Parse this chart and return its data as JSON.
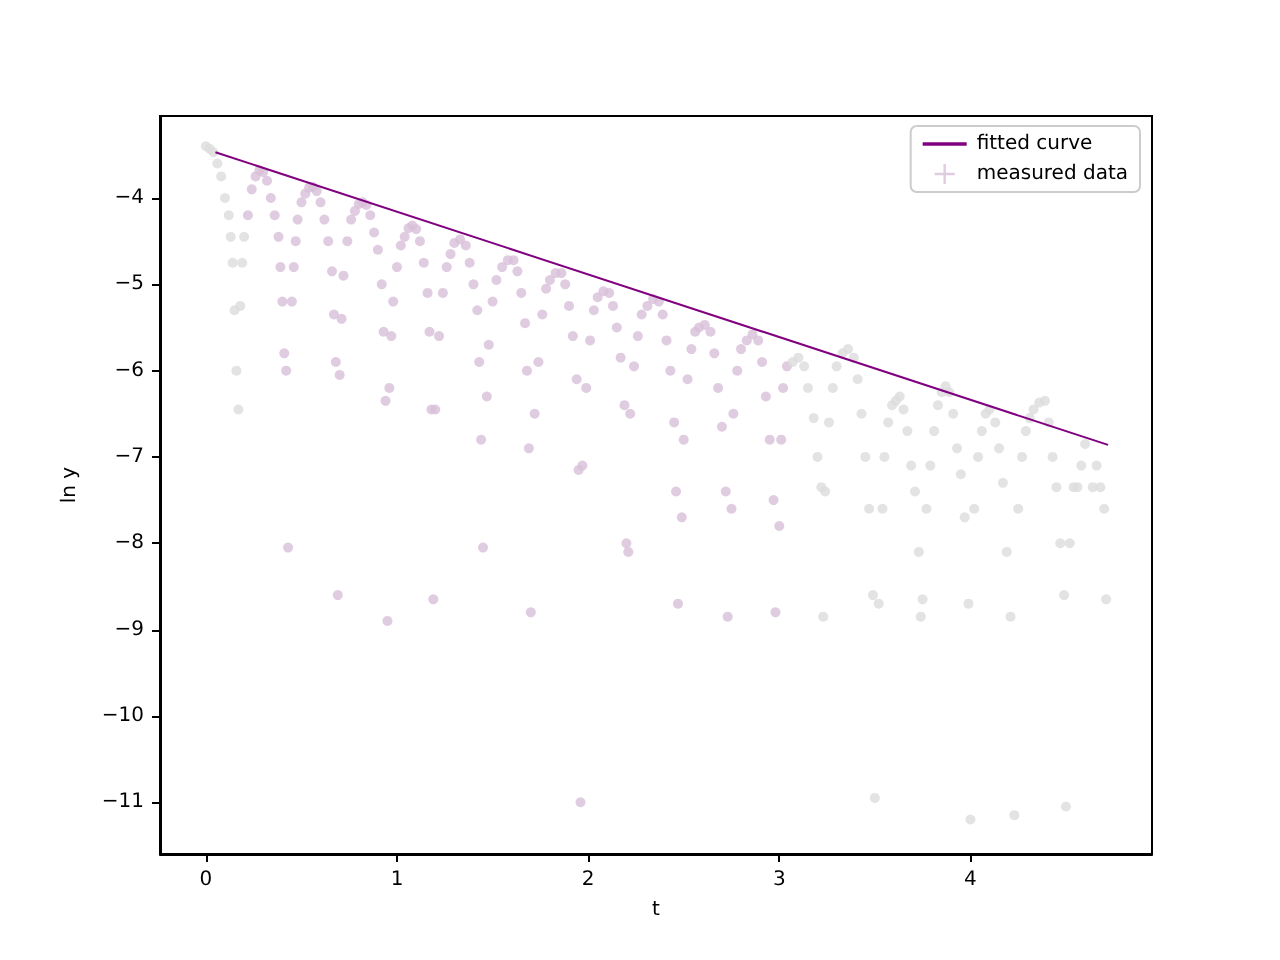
{
  "chart_data": {
    "type": "scatter",
    "xlabel": "t",
    "ylabel": "ln y",
    "xlim": [
      -0.24,
      4.95
    ],
    "ylim": [
      -11.6,
      -3.05
    ],
    "xticks": [
      0,
      1,
      2,
      3,
      4
    ],
    "yticks": [
      -4,
      -5,
      -6,
      -7,
      -8,
      -9,
      -10,
      -11
    ],
    "grid": false,
    "legend": "top right",
    "marker": "circle",
    "series": [
      {
        "type": "line",
        "name": "fitted curve",
        "color": "#800080",
        "marker": "none",
        "x": [
          0.05,
          4.72
        ],
        "values": [
          -3.47,
          -6.86
        ]
      },
      {
        "color": "#dcdcdc",
        "x": [
          0,
          0.02,
          0.04,
          0.06,
          0.08,
          0.1,
          0.12,
          0.13,
          0.14,
          0.15,
          0.16,
          0.17,
          0.18,
          0.19,
          0.2
        ],
        "values": [
          -3.4,
          -3.43,
          -3.47,
          -3.6,
          -3.75,
          -4.0,
          -4.2,
          -4.45,
          -4.75,
          -5.3,
          -6.0,
          -6.45,
          -5.25,
          -4.75,
          -4.45
        ]
      },
      {
        "name": "measured data",
        "color": "#d8bfd8",
        "x": [
          0.22,
          0.24,
          0.26,
          0.28,
          0.3,
          0.32,
          0.34,
          0.36,
          0.38,
          0.39,
          0.4,
          0.41,
          0.42,
          0.43,
          0.45,
          0.46,
          0.47,
          0.48,
          0.5,
          0.52,
          0.54,
          0.56,
          0.58,
          0.6,
          0.62,
          0.64,
          0.66,
          0.67,
          0.68,
          0.69,
          0.7,
          0.71,
          0.72,
          0.74,
          0.76,
          0.78,
          0.8,
          0.82,
          0.84,
          0.86,
          0.88,
          0.9,
          0.92,
          0.93,
          0.94,
          0.95,
          0.96,
          0.97,
          0.98,
          1.0,
          1.02,
          1.04,
          1.06,
          1.08,
          1.1,
          1.12,
          1.14,
          1.16,
          1.17,
          1.18,
          1.19,
          1.2,
          1.22,
          1.24,
          1.26,
          1.28,
          1.3,
          1.33,
          1.36,
          1.38,
          1.4,
          1.42,
          1.43,
          1.44,
          1.45,
          1.47,
          1.48,
          1.5,
          1.52,
          1.55,
          1.58,
          1.61,
          1.63,
          1.65,
          1.67,
          1.68,
          1.69,
          1.7,
          1.72,
          1.74,
          1.76,
          1.78,
          1.8,
          1.83,
          1.86,
          1.88,
          1.9,
          1.92,
          1.94,
          1.95,
          1.96,
          1.97,
          1.99,
          2.01,
          2.03,
          2.05,
          2.08,
          2.11,
          2.13,
          2.15,
          2.17,
          2.19,
          2.2,
          2.21,
          2.22,
          2.24,
          2.26,
          2.28,
          2.31,
          2.34,
          2.37,
          2.39,
          2.41,
          2.43,
          2.45,
          2.46,
          2.47,
          2.49,
          2.5,
          2.52,
          2.54,
          2.56,
          2.58,
          2.61,
          2.64,
          2.66,
          2.68,
          2.7,
          2.72,
          2.73,
          2.75,
          2.76,
          2.78,
          2.8,
          2.83,
          2.86,
          2.89,
          2.91,
          2.93,
          2.95,
          2.97,
          2.98,
          3.0,
          3.01,
          3.02,
          3.04
        ],
        "values": [
          -4.2,
          -3.9,
          -3.75,
          -3.68,
          -3.7,
          -3.8,
          -4.0,
          -4.2,
          -4.45,
          -4.8,
          -5.2,
          -5.8,
          -6.0,
          -8.05,
          -5.2,
          -4.8,
          -4.5,
          -4.25,
          -4.05,
          -3.95,
          -3.88,
          -3.87,
          -3.92,
          -4.05,
          -4.25,
          -4.5,
          -4.85,
          -5.35,
          -5.9,
          -8.6,
          -6.05,
          -5.4,
          -4.9,
          -4.5,
          -4.25,
          -4.15,
          -4.07,
          -4.05,
          -4.08,
          -4.2,
          -4.4,
          -4.6,
          -5.0,
          -5.55,
          -6.35,
          -8.9,
          -6.2,
          -5.6,
          -5.2,
          -4.8,
          -4.55,
          -4.45,
          -4.35,
          -4.32,
          -4.36,
          -4.5,
          -4.75,
          -5.1,
          -5.55,
          -6.45,
          -8.65,
          -6.45,
          -5.6,
          -5.1,
          -4.8,
          -4.65,
          -4.52,
          -4.48,
          -4.55,
          -4.75,
          -5.0,
          -5.3,
          -5.9,
          -6.8,
          -8.05,
          -6.3,
          -5.7,
          -5.2,
          -4.95,
          -4.8,
          -4.72,
          -4.72,
          -4.85,
          -5.1,
          -5.45,
          -6.0,
          -6.9,
          -8.8,
          -6.5,
          -5.9,
          -5.35,
          -5.05,
          -4.95,
          -4.87,
          -4.87,
          -5.0,
          -5.25,
          -5.6,
          -6.1,
          -7.15,
          -11.0,
          -7.1,
          -6.2,
          -5.65,
          -5.3,
          -5.15,
          -5.08,
          -5.1,
          -5.25,
          -5.5,
          -5.85,
          -6.4,
          -8.0,
          -8.1,
          -6.5,
          -5.95,
          -5.6,
          -5.35,
          -5.25,
          -5.17,
          -5.2,
          -5.35,
          -5.65,
          -6.0,
          -6.6,
          -7.4,
          -8.7,
          -7.7,
          -6.8,
          -6.1,
          -5.75,
          -5.55,
          -5.5,
          -5.47,
          -5.55,
          -5.8,
          -6.2,
          -6.65,
          -7.4,
          -8.85,
          -7.6,
          -6.5,
          -6.0,
          -5.75,
          -5.65,
          -5.58,
          -5.65,
          -5.9,
          -6.3,
          -6.8,
          -7.5,
          -8.8,
          -7.8,
          -6.8,
          -6.2,
          -5.95
        ]
      },
      {
        "color": "#dcdcdc",
        "x": [
          3.07,
          3.1,
          3.13,
          3.15,
          3.18,
          3.2,
          3.22,
          3.23,
          3.24,
          3.26,
          3.28,
          3.3,
          3.33,
          3.36,
          3.39,
          3.41,
          3.43,
          3.45,
          3.47,
          3.49,
          3.5,
          3.52,
          3.54,
          3.55,
          3.57,
          3.59,
          3.61,
          3.63,
          3.65,
          3.67,
          3.69,
          3.71,
          3.73,
          3.74,
          3.75,
          3.77,
          3.79,
          3.81,
          3.83,
          3.85,
          3.87,
          3.89,
          3.91,
          3.93,
          3.95,
          3.97,
          3.99,
          4.0,
          4.02,
          4.04,
          4.06,
          4.08,
          4.1,
          4.13,
          4.15,
          4.17,
          4.19,
          4.21,
          4.23,
          4.25,
          4.27,
          4.29,
          4.31,
          4.33,
          4.36,
          4.39,
          4.41,
          4.43,
          4.45,
          4.47,
          4.49,
          4.5,
          4.52,
          4.54,
          4.56,
          4.58,
          4.6,
          4.64,
          4.66,
          4.68,
          4.7,
          4.71
        ],
        "values": [
          -5.9,
          -5.85,
          -5.95,
          -6.2,
          -6.55,
          -7.0,
          -7.35,
          -8.85,
          -7.4,
          -6.6,
          -6.2,
          -5.95,
          -5.8,
          -5.75,
          -5.85,
          -6.1,
          -6.5,
          -7.0,
          -7.6,
          -8.6,
          -10.95,
          -8.7,
          -7.6,
          -7.0,
          -6.6,
          -6.4,
          -6.35,
          -6.3,
          -6.45,
          -6.7,
          -7.1,
          -7.4,
          -8.1,
          -8.85,
          -8.65,
          -7.6,
          -7.1,
          -6.7,
          -6.4,
          -6.25,
          -6.18,
          -6.25,
          -6.5,
          -6.9,
          -7.2,
          -7.7,
          -8.7,
          -11.2,
          -7.6,
          -7.0,
          -6.7,
          -6.5,
          -6.45,
          -6.6,
          -6.9,
          -7.3,
          -8.1,
          -8.85,
          -11.15,
          -7.6,
          -7.0,
          -6.7,
          -6.55,
          -6.45,
          -6.37,
          -6.35,
          -6.6,
          -7.0,
          -7.35,
          -8.0,
          -8.6,
          -11.05,
          -8.0,
          -7.35,
          -7.35,
          -7.1,
          -6.85,
          -7.35,
          -7.1,
          -7.35,
          -7.6,
          -8.65
        ]
      }
    ]
  }
}
